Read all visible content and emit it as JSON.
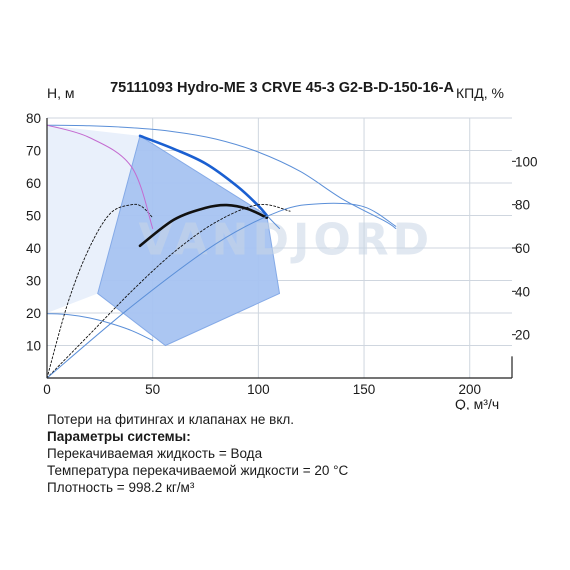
{
  "chart_data": {
    "type": "line",
    "title": "75111093 Hydro-ME 3 CRVE 45-3 G2-B-D-150-16-A",
    "xlabel": "Q, м³/ч",
    "ylabel": "H, м",
    "y2label": "КПД, %",
    "xlim": [
      0,
      220
    ],
    "ylim": [
      0,
      80
    ],
    "y2lim": [
      0,
      120
    ],
    "xticks": [
      "0",
      "50",
      "100",
      "150",
      "200"
    ],
    "yticks": [
      "10",
      "20",
      "30",
      "40",
      "50",
      "60",
      "70",
      "80"
    ],
    "y2ticks": [
      "20",
      "40",
      "60",
      "80",
      "100"
    ],
    "grid": true,
    "watermark": "VANDJORD",
    "colors": {
      "duty_area": "#a7c4f2",
      "duty_area_border": "#7fa6e6",
      "light_fill": "#e9f0fb",
      "pump_curve": "#1a5fd1",
      "thin_curve": "#5b8fd8",
      "efficiency": "#111111",
      "pink_curve": "#c46bd0",
      "grid": "#cfd6df"
    },
    "series": [
      {
        "role": "H-Q max speed (thin)",
        "x": [
          0,
          20,
          40,
          60,
          80,
          100,
          120,
          140,
          160,
          165
        ],
        "y": [
          77.8,
          77.6,
          77,
          75.8,
          73.5,
          69.5,
          63.5,
          55,
          48.2,
          46
        ]
      },
      {
        "role": "H-Q operating segment (bold)",
        "x": [
          44,
          60,
          75,
          90,
          100,
          104
        ],
        "y": [
          74.5,
          70.5,
          66,
          59,
          53,
          50
        ]
      },
      {
        "role": "H-Q operating continuation (thin)",
        "x": [
          104,
          110
        ],
        "y": [
          50,
          46
        ]
      },
      {
        "role": "H-Q min speed",
        "x": [
          0,
          10,
          20,
          30,
          40,
          50
        ],
        "y": [
          19.8,
          19.5,
          18.5,
          16.8,
          14.6,
          11.5
        ]
      },
      {
        "role": "efficiency low speed",
        "x": [
          0,
          10,
          20,
          30,
          40,
          45,
          50
        ],
        "y": [
          0,
          35,
          60,
          76,
          80,
          79,
          74
        ]
      },
      {
        "role": "efficiency mid speed (thin)",
        "x": [
          0,
          20,
          40,
          60,
          80,
          100,
          115
        ],
        "y": [
          0,
          20,
          40,
          58,
          72,
          80,
          77
        ]
      },
      {
        "role": "efficiency operating (bold)",
        "x": [
          44,
          60,
          75,
          85,
          95,
          104
        ],
        "y": [
          61,
          73,
          78.5,
          79.8,
          78,
          74
        ]
      },
      {
        "role": "efficiency max speed (thin)",
        "x": [
          0,
          40,
          80,
          110,
          130,
          150,
          165
        ],
        "y": [
          0,
          33,
          62,
          77,
          80.5,
          79,
          70
        ]
      },
      {
        "role": "power/NPSH curve",
        "x": [
          0,
          20,
          40,
          50
        ],
        "y": [
          77.8,
          74,
          65,
          46
        ]
      }
    ],
    "duty_area": {
      "q": [
        44,
        104,
        110,
        56,
        24
      ],
      "h": [
        74.5,
        50,
        26,
        10,
        26
      ]
    },
    "light_area": {
      "q": [
        0,
        44,
        24,
        0
      ],
      "h": [
        77.8,
        74.5,
        26,
        20
      ]
    }
  },
  "notes": {
    "line1": "Потери на фитингах и клапанах не вкл.",
    "line2": "Параметры системы:",
    "line3": "Перекачиваемая жидкость = Вода",
    "line4": "Температура перекачиваемой жидкости = 20 °C",
    "line5": "Плотность = 998.2 кг/м³"
  }
}
